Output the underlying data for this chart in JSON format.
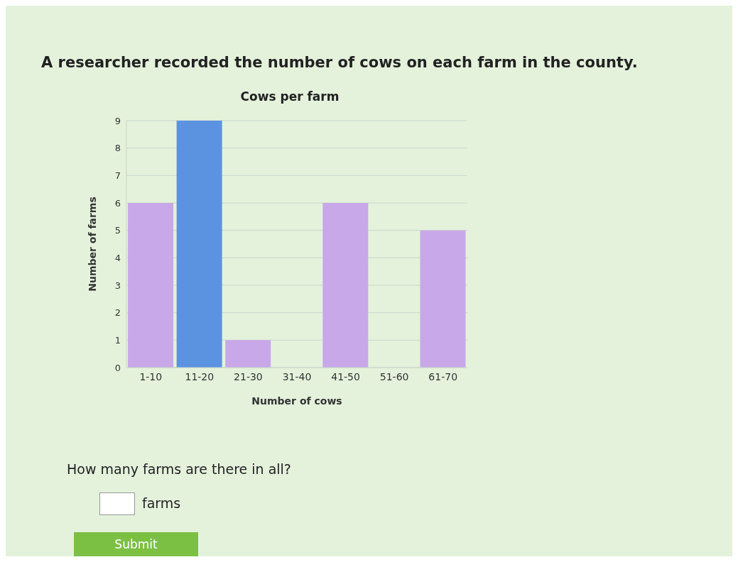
{
  "chart_data": {
    "type": "bar",
    "title": "Cows per farm",
    "xlabel": "Number of cows",
    "ylabel": "Number of farms",
    "categories": [
      "1-10",
      "11-20",
      "21-30",
      "31-40",
      "41-50",
      "51-60",
      "61-70"
    ],
    "values": [
      6,
      9,
      1,
      0,
      6,
      0,
      5
    ],
    "colors": [
      "#c8a8e8",
      "#5b93e0",
      "#c8a8e8",
      "#c8a8e8",
      "#c8a8e8",
      "#c8a8e8",
      "#c8a8e8"
    ],
    "ylim": [
      0,
      9
    ],
    "yticks": [
      0,
      1,
      2,
      3,
      4,
      5,
      6,
      7,
      8,
      9
    ],
    "grid": "y",
    "annotations": [
      "A researcher recorded the number of cows on each farm in the county.",
      "How many farms are there in all?",
      "farms",
      "Submit"
    ]
  }
}
